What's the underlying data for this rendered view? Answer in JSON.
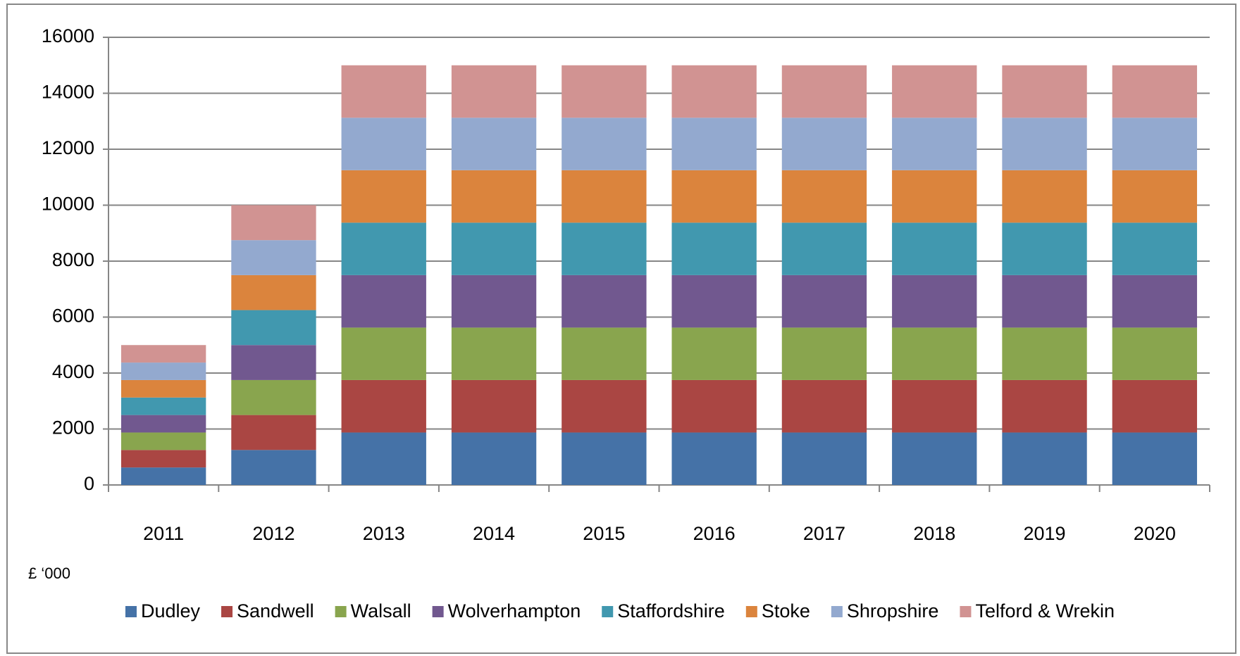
{
  "chart_data": {
    "type": "stacked-bar",
    "categories": [
      "2011",
      "2012",
      "2013",
      "2014",
      "2015",
      "2016",
      "2017",
      "2018",
      "2019",
      "2020"
    ],
    "series": [
      {
        "name": "Dudley",
        "color": "#4572a7",
        "values": [
          625,
          1250,
          1875,
          1875,
          1875,
          1875,
          1875,
          1875,
          1875,
          1875
        ]
      },
      {
        "name": "Sandwell",
        "color": "#aa4643",
        "values": [
          625,
          1250,
          1875,
          1875,
          1875,
          1875,
          1875,
          1875,
          1875,
          1875
        ]
      },
      {
        "name": "Walsall",
        "color": "#89a54e",
        "values": [
          625,
          1250,
          1875,
          1875,
          1875,
          1875,
          1875,
          1875,
          1875,
          1875
        ]
      },
      {
        "name": "Wolverhampton",
        "color": "#71588f",
        "values": [
          625,
          1250,
          1875,
          1875,
          1875,
          1875,
          1875,
          1875,
          1875,
          1875
        ]
      },
      {
        "name": "Staffordshire",
        "color": "#4198af",
        "values": [
          625,
          1250,
          1875,
          1875,
          1875,
          1875,
          1875,
          1875,
          1875,
          1875
        ]
      },
      {
        "name": "Stoke",
        "color": "#db843d",
        "values": [
          625,
          1250,
          1875,
          1875,
          1875,
          1875,
          1875,
          1875,
          1875,
          1875
        ]
      },
      {
        "name": "Shropshire",
        "color": "#93a9cf",
        "values": [
          625,
          1250,
          1875,
          1875,
          1875,
          1875,
          1875,
          1875,
          1875,
          1875
        ]
      },
      {
        "name": "Telford & Wrekin",
        "color": "#d19392",
        "values": [
          625,
          1250,
          1875,
          1875,
          1875,
          1875,
          1875,
          1875,
          1875,
          1875
        ]
      }
    ],
    "annotation": "£ ‘000",
    "ylim": [
      0,
      16000
    ],
    "yticks": [
      0,
      2000,
      4000,
      6000,
      8000,
      10000,
      12000,
      14000,
      16000
    ],
    "grid": true,
    "legend": "bottom"
  }
}
